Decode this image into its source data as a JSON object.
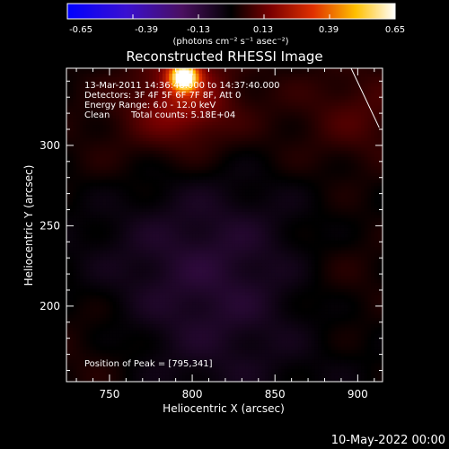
{
  "colorbar": {
    "ticks": [
      "-0.65",
      "-0.39",
      "-0.13",
      "0.13",
      "0.39",
      "0.65"
    ],
    "unit_label": "(photons cm⁻² s⁻¹ asec⁻²)",
    "range": [
      -0.65,
      0.65
    ],
    "colormap": "blue-purple-black-red-yellow-white"
  },
  "info": {
    "time_line": "13-Mar-2011 14:36:48.000 to 14:37:40.000",
    "detectors_line": "Detectors: 3F 4F 5F 6F 7F 8F, Att 0",
    "energy_line": "Energy Range: 6.0 - 12.0 keV",
    "clean_label": "Clean",
    "counts_line": "Total counts: 5.18E+04",
    "peak_line": "Position of Peak = [795,341]"
  },
  "footer": {
    "date": "10-May-2022 00:00"
  },
  "colors": {
    "background": "#000000",
    "limb": "#ffffff"
  },
  "chart_data": {
    "type": "heatmap",
    "title": "Reconstructed RHESSI Image",
    "xlabel": "Heliocentric X (arcsec)",
    "ylabel": "Heliocentric Y (arcsec)",
    "xlim": [
      724,
      915
    ],
    "ylim": [
      153,
      348
    ],
    "x_ticks": [
      750,
      800,
      850,
      900
    ],
    "y_ticks": [
      200,
      250,
      300
    ],
    "peak": {
      "x": 795,
      "y": 341
    },
    "sources": [
      {
        "x": 795,
        "y": 343,
        "sigma": 6,
        "value": 0.65
      },
      {
        "x": 795,
        "y": 330,
        "sigma": 20,
        "value": 0.18
      },
      {
        "x": 760,
        "y": 310,
        "sigma": 35,
        "value": 0.05
      },
      {
        "x": 845,
        "y": 315,
        "sigma": 35,
        "value": 0.04
      },
      {
        "x": 905,
        "y": 320,
        "sigma": 25,
        "value": 0.08
      },
      {
        "x": 890,
        "y": 220,
        "sigma": 30,
        "value": 0.05
      },
      {
        "x": 740,
        "y": 175,
        "sigma": 30,
        "value": 0.05
      },
      {
        "x": 810,
        "y": 220,
        "sigma": 50,
        "value": -0.1
      }
    ],
    "limb_line": [
      [
        896,
        348
      ],
      [
        913,
        311
      ]
    ]
  }
}
